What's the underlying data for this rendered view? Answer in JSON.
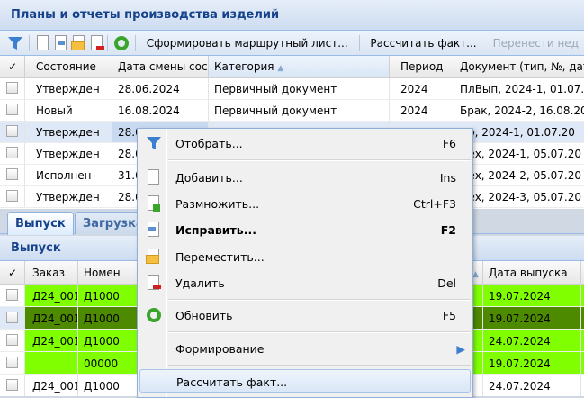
{
  "top_panel": {
    "title": "Планы и отчеты производства изделий",
    "toolbar": {
      "icons": [
        "filter-icon",
        "add-icon",
        "copy-icon",
        "move-icon",
        "delete-icon",
        "refresh-icon"
      ],
      "route_sheet": "Сформировать маршрутный лист...",
      "calc_fact": "Рассчитать факт...",
      "transfer": "Перенести нед"
    },
    "columns": [
      "Состояние",
      "Дата смены сост",
      "Категория",
      "Период",
      "Документ (тип, №, дат"
    ],
    "sort_indicator": "▲",
    "rows": [
      [
        "Утвержден",
        "28.06.2024",
        "Первичный документ",
        "2024",
        "ПлВып, 2024-1, 01.07.2"
      ],
      [
        "Новый",
        "16.08.2024",
        "Первичный документ",
        "2024",
        "Брак, 2024-2, 16.08.202"
      ],
      [
        "Утвержден",
        "28.0",
        "",
        "",
        "Пр, 2024-1, 01.07.20"
      ],
      [
        "Утвержден",
        "28.0",
        "",
        "",
        "Цех, 2024-1, 05.07.20"
      ],
      [
        "Исполнен",
        "31.0",
        "",
        "",
        "Цех, 2024-2, 05.07.20"
      ],
      [
        "Утвержден",
        "28.0",
        "",
        "",
        "Цех, 2024-3, 05.07.20"
      ]
    ]
  },
  "tabs": [
    {
      "label": "Выпуск",
      "active": true
    },
    {
      "label": "Загрузка"
    }
  ],
  "bottom_panel": {
    "title": "Выпуск",
    "columns": [
      "Заказ",
      "Номен",
      "а",
      "Дата выпуска"
    ],
    "rows": [
      {
        "order": "Д24_001",
        "nom": "Д1000",
        "date": "19.07.2024",
        "color": "#80ff00"
      },
      {
        "order": "Д24_001",
        "nom": "Д1000",
        "date": "19.07.2024",
        "color": "#4e8a00"
      },
      {
        "order": "Д24_001",
        "nom": "Д1000",
        "date": "24.07.2024",
        "color": "#80ff00"
      },
      {
        "order": "",
        "nom": "00000",
        "date": "19.07.2024",
        "color": "#80ff00"
      },
      {
        "order": "Д24_001",
        "nom": "Д1000",
        "date": "24.07.2024",
        "color": "#ffffff"
      }
    ]
  },
  "context_menu": {
    "items": [
      {
        "label": "Отобрать...",
        "key": "F6",
        "icon": "filter-icon"
      },
      {
        "label": "Добавить...",
        "key": "Ins",
        "icon": "add-icon"
      },
      {
        "label": "Размножить...",
        "key": "Ctrl+F3",
        "icon": "copy-icon"
      },
      {
        "label": "Исправить...",
        "key": "F2",
        "icon": "edit-icon",
        "bold": true
      },
      {
        "label": "Переместить...",
        "key": "",
        "icon": "move-icon"
      },
      {
        "label": "Удалить",
        "key": "Del",
        "icon": "delete-icon"
      },
      {
        "label": "Обновить",
        "key": "F5",
        "icon": "refresh-icon"
      },
      {
        "label": "Формирование",
        "key": "",
        "submenu": true
      },
      {
        "label": "Рассчитать факт...",
        "key": "",
        "highlighted": true
      }
    ]
  }
}
